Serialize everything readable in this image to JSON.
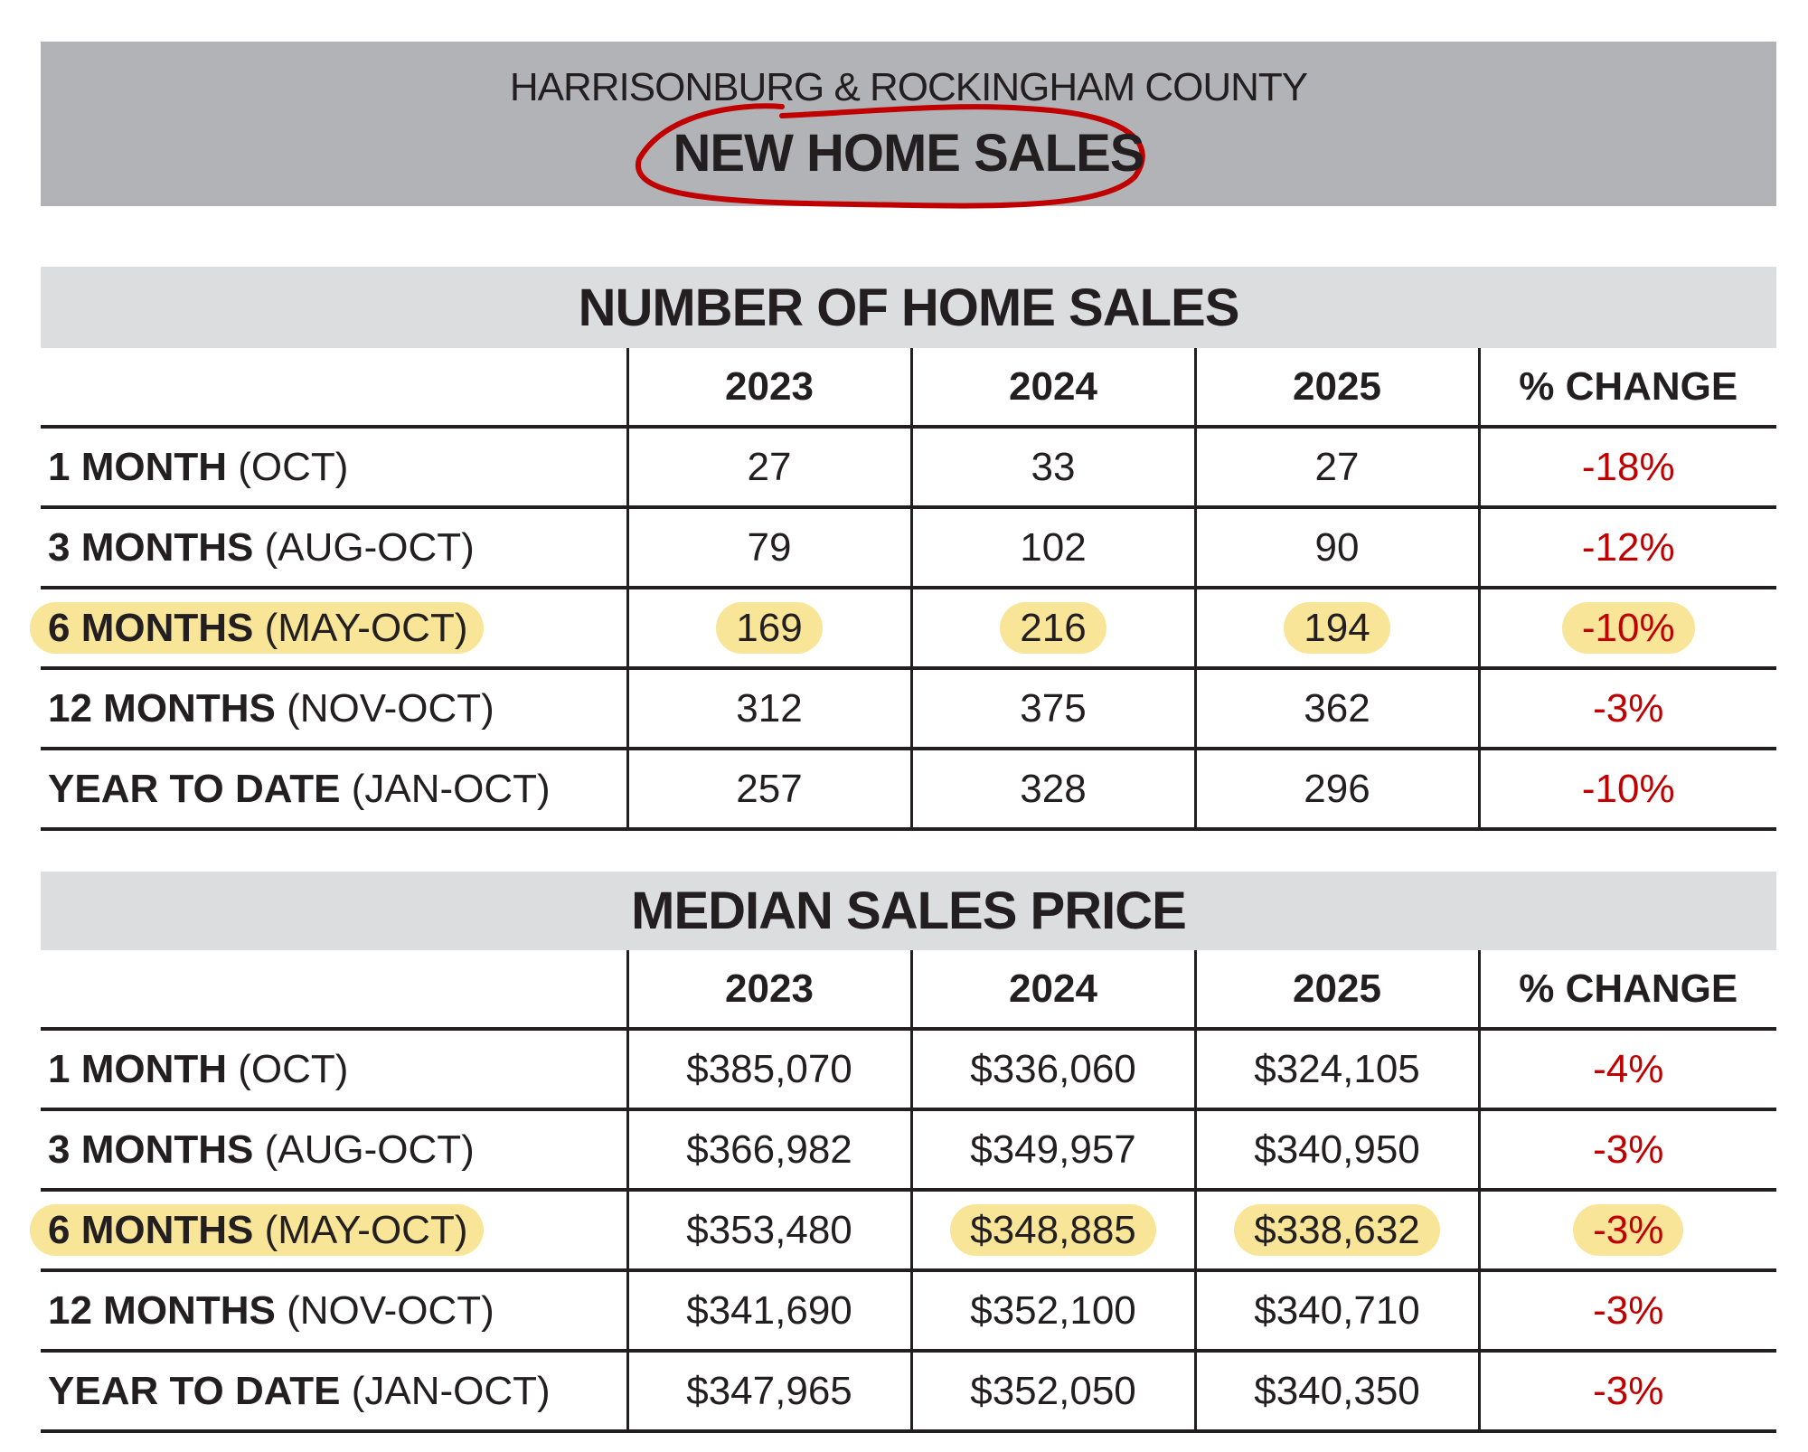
{
  "header": {
    "subtitle": "HARRISONBURG & ROCKINGHAM COUNTY",
    "title": "NEW HOME SALES",
    "annotation_color": "#c00000"
  },
  "highlight_color": "#f8e597",
  "negative_color": "#c00000",
  "columns": [
    "",
    "2023",
    "2024",
    "2025",
    "% CHANGE"
  ],
  "sales": {
    "title": "NUMBER OF HOME SALES",
    "rows": [
      {
        "period": "1 MONTH",
        "range": "(OCT)",
        "v2023": "27",
        "v2024": "33",
        "v2025": "27",
        "change": "-18%"
      },
      {
        "period": "3 MONTHS",
        "range": "(AUG-OCT)",
        "v2023": "79",
        "v2024": "102",
        "v2025": "90",
        "change": "-12%"
      },
      {
        "period": "6 MONTHS",
        "range": "(MAY-OCT)",
        "v2023": "169",
        "v2024": "216",
        "v2025": "194",
        "change": "-10%",
        "highlighted": [
          "label",
          "v2023",
          "v2024",
          "v2025",
          "change"
        ]
      },
      {
        "period": "12 MONTHS",
        "range": "(NOV-OCT)",
        "v2023": "312",
        "v2024": "375",
        "v2025": "362",
        "change": "-3%"
      },
      {
        "period": "YEAR TO DATE",
        "range": "(JAN-OCT)",
        "v2023": "257",
        "v2024": "328",
        "v2025": "296",
        "change": "-10%"
      }
    ]
  },
  "price": {
    "title": "MEDIAN SALES PRICE",
    "rows": [
      {
        "period": "1 MONTH",
        "range": "(OCT)",
        "v2023": "$385,070",
        "v2024": "$336,060",
        "v2025": "$324,105",
        "change": "-4%"
      },
      {
        "period": "3 MONTHS",
        "range": "(AUG-OCT)",
        "v2023": "$366,982",
        "v2024": "$349,957",
        "v2025": "$340,950",
        "change": "-3%"
      },
      {
        "period": "6 MONTHS",
        "range": "(MAY-OCT)",
        "v2023": "$353,480",
        "v2024": "$348,885",
        "v2025": "$338,632",
        "change": "-3%",
        "highlighted": [
          "label",
          "v2024",
          "v2025",
          "change"
        ]
      },
      {
        "period": "12 MONTHS",
        "range": "(NOV-OCT)",
        "v2023": "$341,690",
        "v2024": "$352,100",
        "v2025": "$340,710",
        "change": "-3%"
      },
      {
        "period": "YEAR TO DATE",
        "range": "(JAN-OCT)",
        "v2023": "$347,965",
        "v2024": "$352,050",
        "v2025": "$340,350",
        "change": "-3%"
      }
    ]
  }
}
